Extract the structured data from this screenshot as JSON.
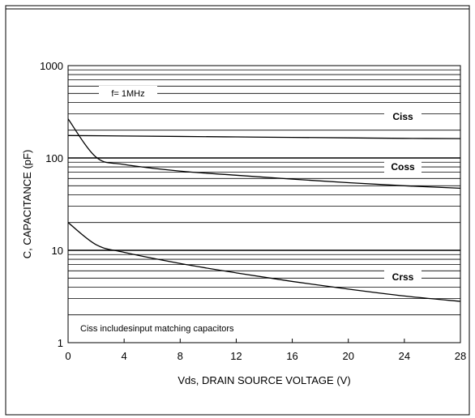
{
  "chart_data": {
    "type": "line",
    "title": "",
    "xlabel": "Vds, DRAIN SOURCE VOLTAGE (V)",
    "ylabel": "C, CAPACITANCE (pF)",
    "xlim": [
      0,
      28
    ],
    "ylim": [
      1,
      1000
    ],
    "yscale": "log",
    "grid": true,
    "x_ticks": [
      0,
      4,
      8,
      12,
      16,
      20,
      24,
      28
    ],
    "y_ticks": [
      1,
      10,
      100,
      1000
    ],
    "series": [
      {
        "name": "Ciss",
        "x": [
          0,
          4,
          8,
          12,
          16,
          20,
          24,
          28
        ],
        "values": [
          175,
          173,
          171,
          169,
          167,
          165,
          163,
          162
        ]
      },
      {
        "name": "Coss",
        "x": [
          0,
          2,
          4,
          8,
          12,
          16,
          20,
          24,
          28
        ],
        "values": [
          265,
          102,
          85,
          72,
          65,
          59,
          54,
          50,
          47
        ]
      },
      {
        "name": "Crss",
        "x": [
          0,
          2,
          4,
          8,
          12,
          16,
          20,
          24,
          28
        ],
        "values": [
          20,
          11.5,
          9.5,
          7.2,
          5.7,
          4.6,
          3.8,
          3.2,
          2.8
        ]
      }
    ],
    "annotations": [
      "f= 1MHz",
      "Ciss includesinput matching capacitors"
    ]
  }
}
